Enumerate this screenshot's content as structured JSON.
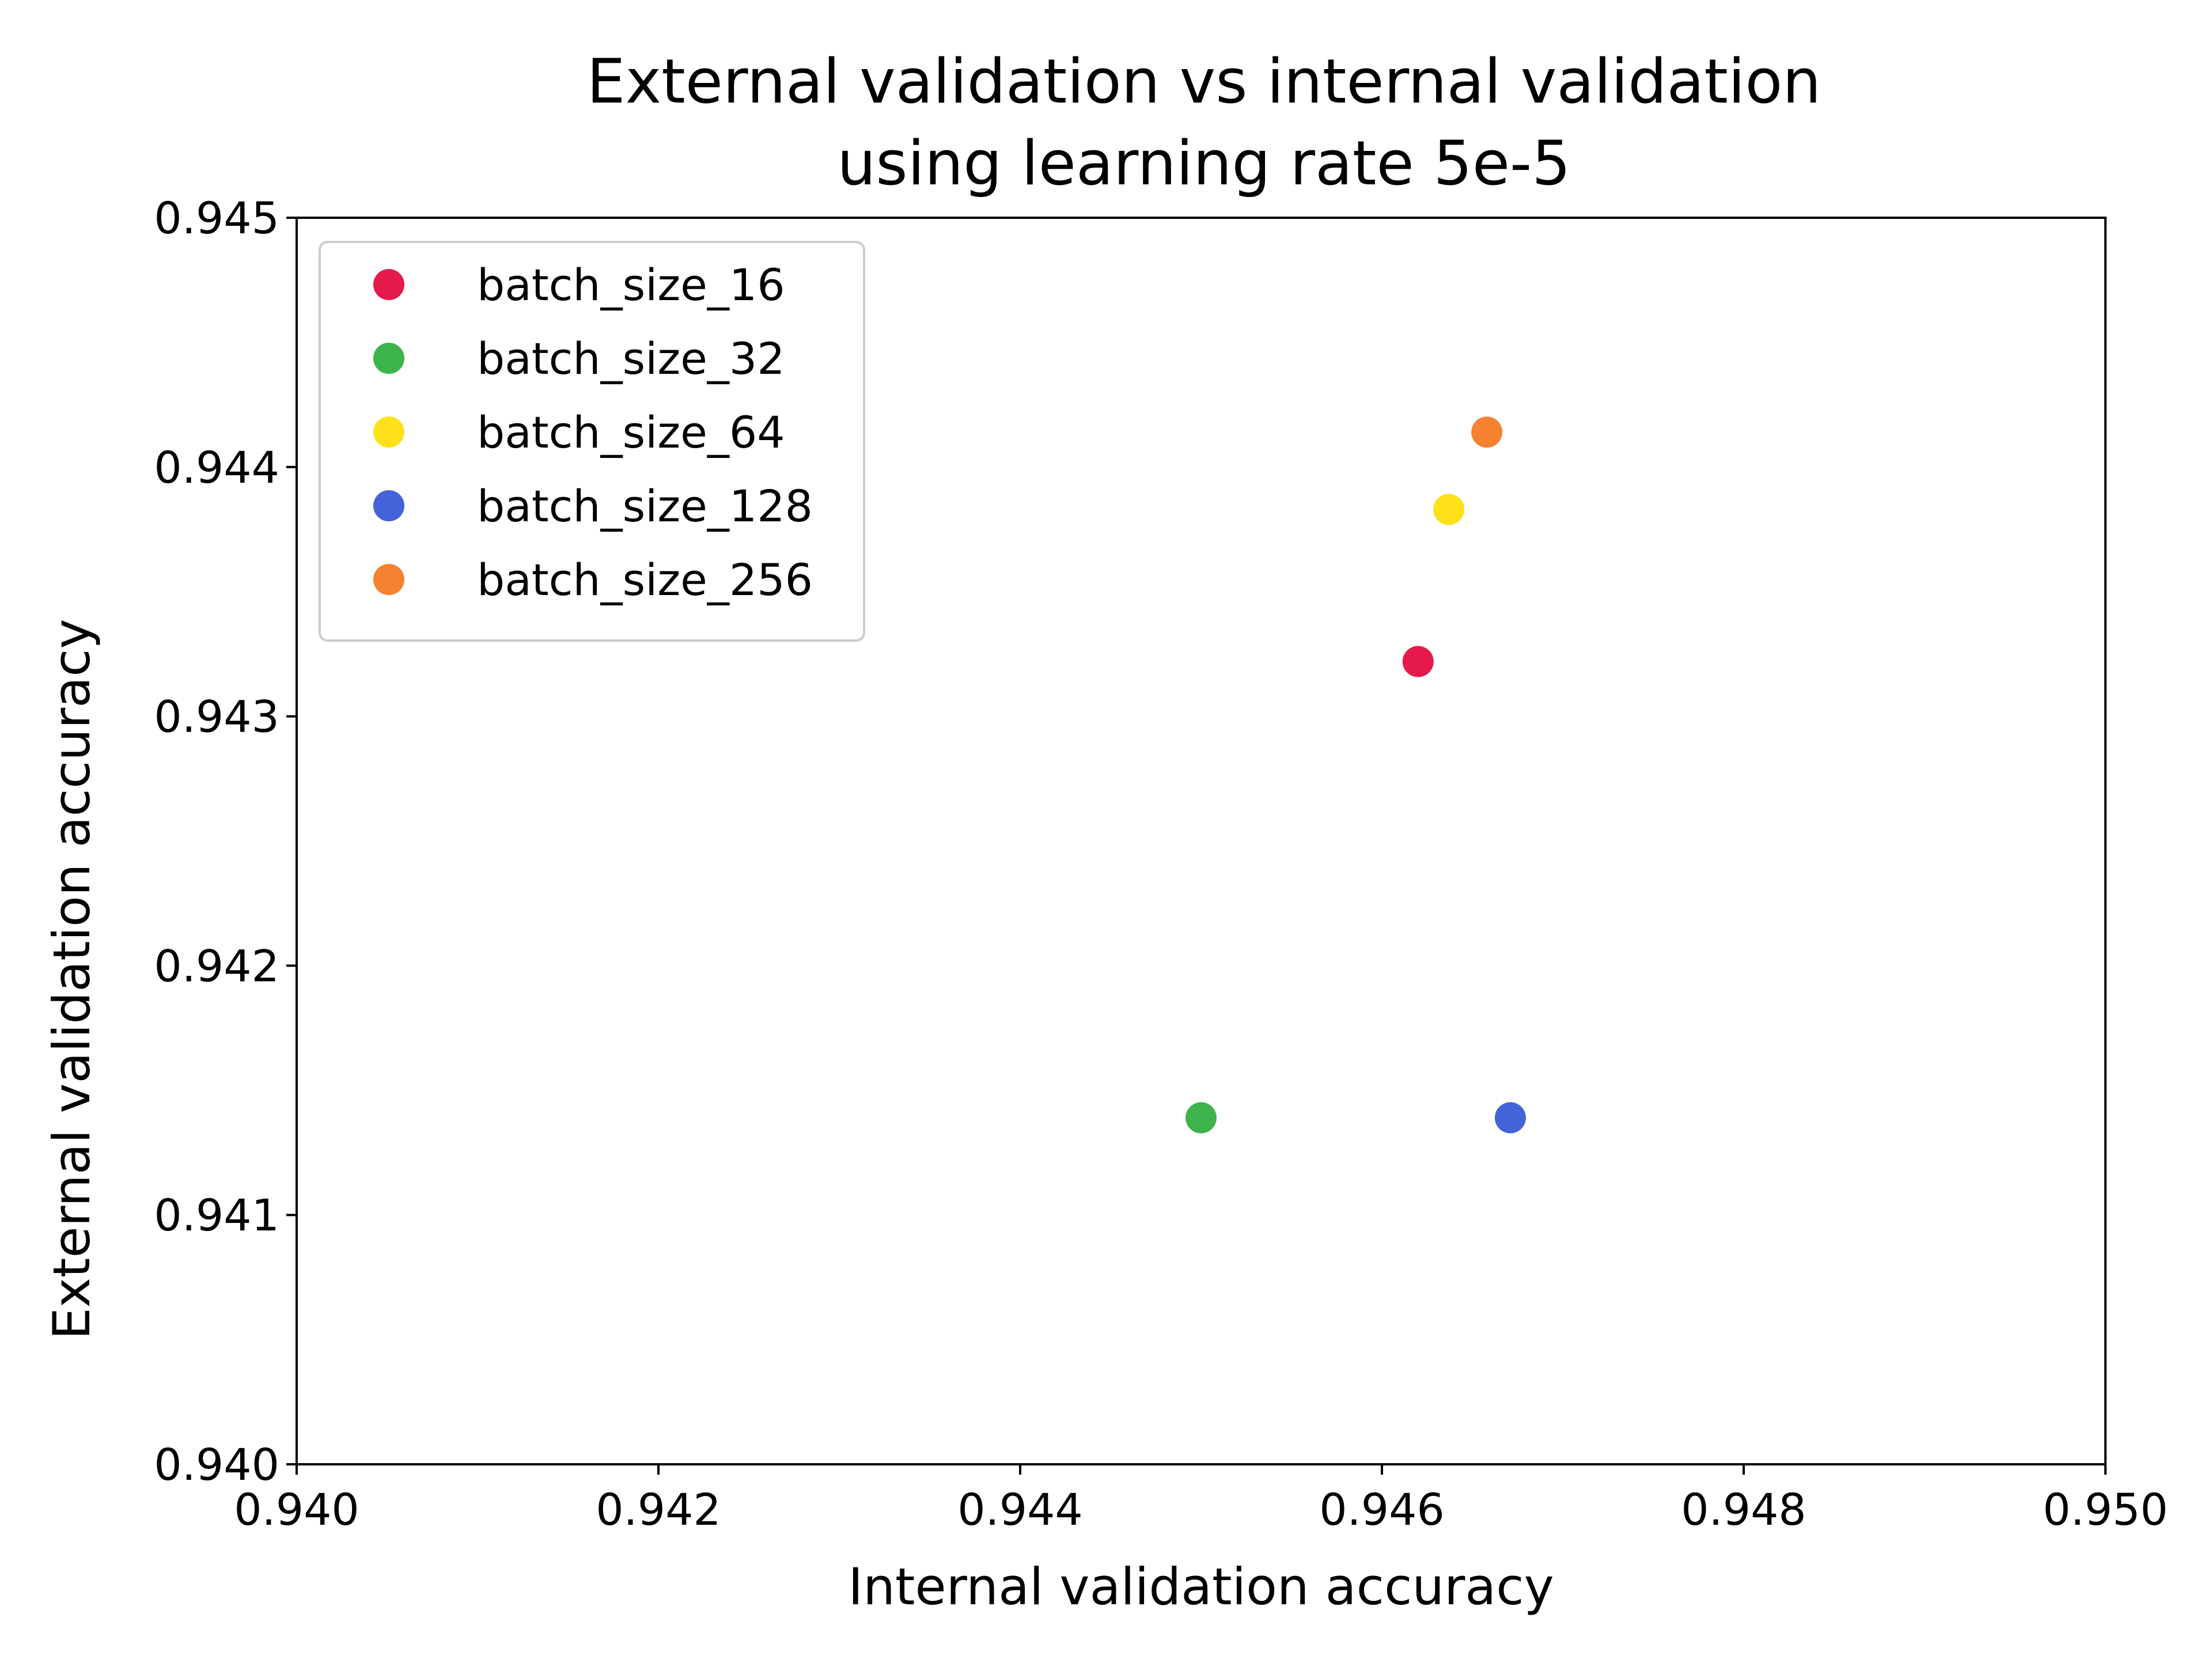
{
  "chart_data": {
    "type": "scatter",
    "title_lines": [
      "External validation vs internal validation",
      "using learning rate 5e-5"
    ],
    "xlabel": "Internal validation accuracy",
    "ylabel": "External validation accuracy",
    "xlim": [
      0.94,
      0.95
    ],
    "ylim": [
      0.94,
      0.945
    ],
    "x_ticks": [
      0.94,
      0.942,
      0.944,
      0.946,
      0.948,
      0.95
    ],
    "x_tick_labels": [
      "0.940",
      "0.942",
      "0.944",
      "0.946",
      "0.948",
      "0.950"
    ],
    "y_ticks": [
      0.94,
      0.941,
      0.942,
      0.943,
      0.944,
      0.945
    ],
    "y_tick_labels": [
      "0.940",
      "0.941",
      "0.942",
      "0.943",
      "0.944",
      "0.945"
    ],
    "grid": false,
    "legend_position": "top-left",
    "series": [
      {
        "name": "batch_size_16",
        "color": "#e6194b",
        "x": [
          0.9462
        ],
        "y": [
          0.94322
        ]
      },
      {
        "name": "batch_size_32",
        "color": "#3cb44b",
        "x": [
          0.945
        ],
        "y": [
          0.94139
        ]
      },
      {
        "name": "batch_size_64",
        "color": "#ffe119",
        "x": [
          0.94637
        ],
        "y": [
          0.94383
        ]
      },
      {
        "name": "batch_size_128",
        "color": "#4363d8",
        "x": [
          0.94671
        ],
        "y": [
          0.94139
        ]
      },
      {
        "name": "batch_size_256",
        "color": "#f58231",
        "x": [
          0.94658
        ],
        "y": [
          0.94414
        ]
      }
    ]
  }
}
